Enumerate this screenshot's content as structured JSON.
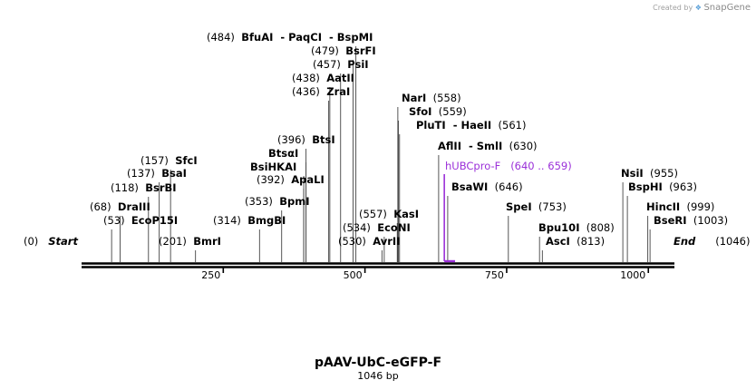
{
  "credit": {
    "prefix": "Created by",
    "brand": "SnapGene"
  },
  "map": {
    "name": "pAAV-UbC-eGFP-F",
    "size_label": "1046 bp",
    "length": 1046,
    "ticks": [
      250,
      500,
      750,
      1000
    ],
    "ends": [
      {
        "name": "Start",
        "pos_label": "(0)",
        "side": "left"
      },
      {
        "name": "End",
        "pos_label": "(1046)",
        "side": "right"
      }
    ],
    "feature": {
      "name": "hUBCpro-F",
      "range_label": "(640 .. 659)",
      "start": 640,
      "end": 659,
      "color": "#9b30d9"
    },
    "sites": [
      {
        "name": "EcoP15I",
        "pos": 53
      },
      {
        "name": "DraIII",
        "pos": 68
      },
      {
        "name": "BsrBI",
        "pos": 118
      },
      {
        "name": "BsaI",
        "pos": 137
      },
      {
        "name": "SfcI",
        "pos": 157
      },
      {
        "name": "BmrI",
        "pos": 201
      },
      {
        "name": "BmgBI",
        "pos": 314
      },
      {
        "name": "BpmI",
        "pos": 353
      },
      {
        "name": "ApaLI",
        "pos": 392
      },
      {
        "name": "BsiHKAI",
        "pos": 392
      },
      {
        "name": "BtsαI",
        "pos": 396
      },
      {
        "name": "BtsI",
        "pos": 396
      },
      {
        "name": "ZraI",
        "pos": 436
      },
      {
        "name": "AatII",
        "pos": 438
      },
      {
        "name": "PsiI",
        "pos": 457
      },
      {
        "name": "BsrFI",
        "pos": 479
      },
      {
        "name": "BfuAI - PaqCI - BspMI",
        "pos": 484
      },
      {
        "name": "AvrII",
        "pos": 530
      },
      {
        "name": "EcoNI",
        "pos": 534
      },
      {
        "name": "KasI",
        "pos": 557
      },
      {
        "name": "NarI",
        "pos": 558
      },
      {
        "name": "SfoI",
        "pos": 559
      },
      {
        "name": "PluTI - HaeII",
        "pos": 561
      },
      {
        "name": "AflII - SmlI",
        "pos": 630
      },
      {
        "name": "BsaWI",
        "pos": 646
      },
      {
        "name": "SpeI",
        "pos": 753
      },
      {
        "name": "Bpu10I",
        "pos": 808
      },
      {
        "name": "AscI",
        "pos": 813
      },
      {
        "name": "NsiI",
        "pos": 955
      },
      {
        "name": "BspHI",
        "pos": 963
      },
      {
        "name": "HincII",
        "pos": 999
      },
      {
        "name": "BseRI",
        "pos": 1003
      }
    ]
  }
}
